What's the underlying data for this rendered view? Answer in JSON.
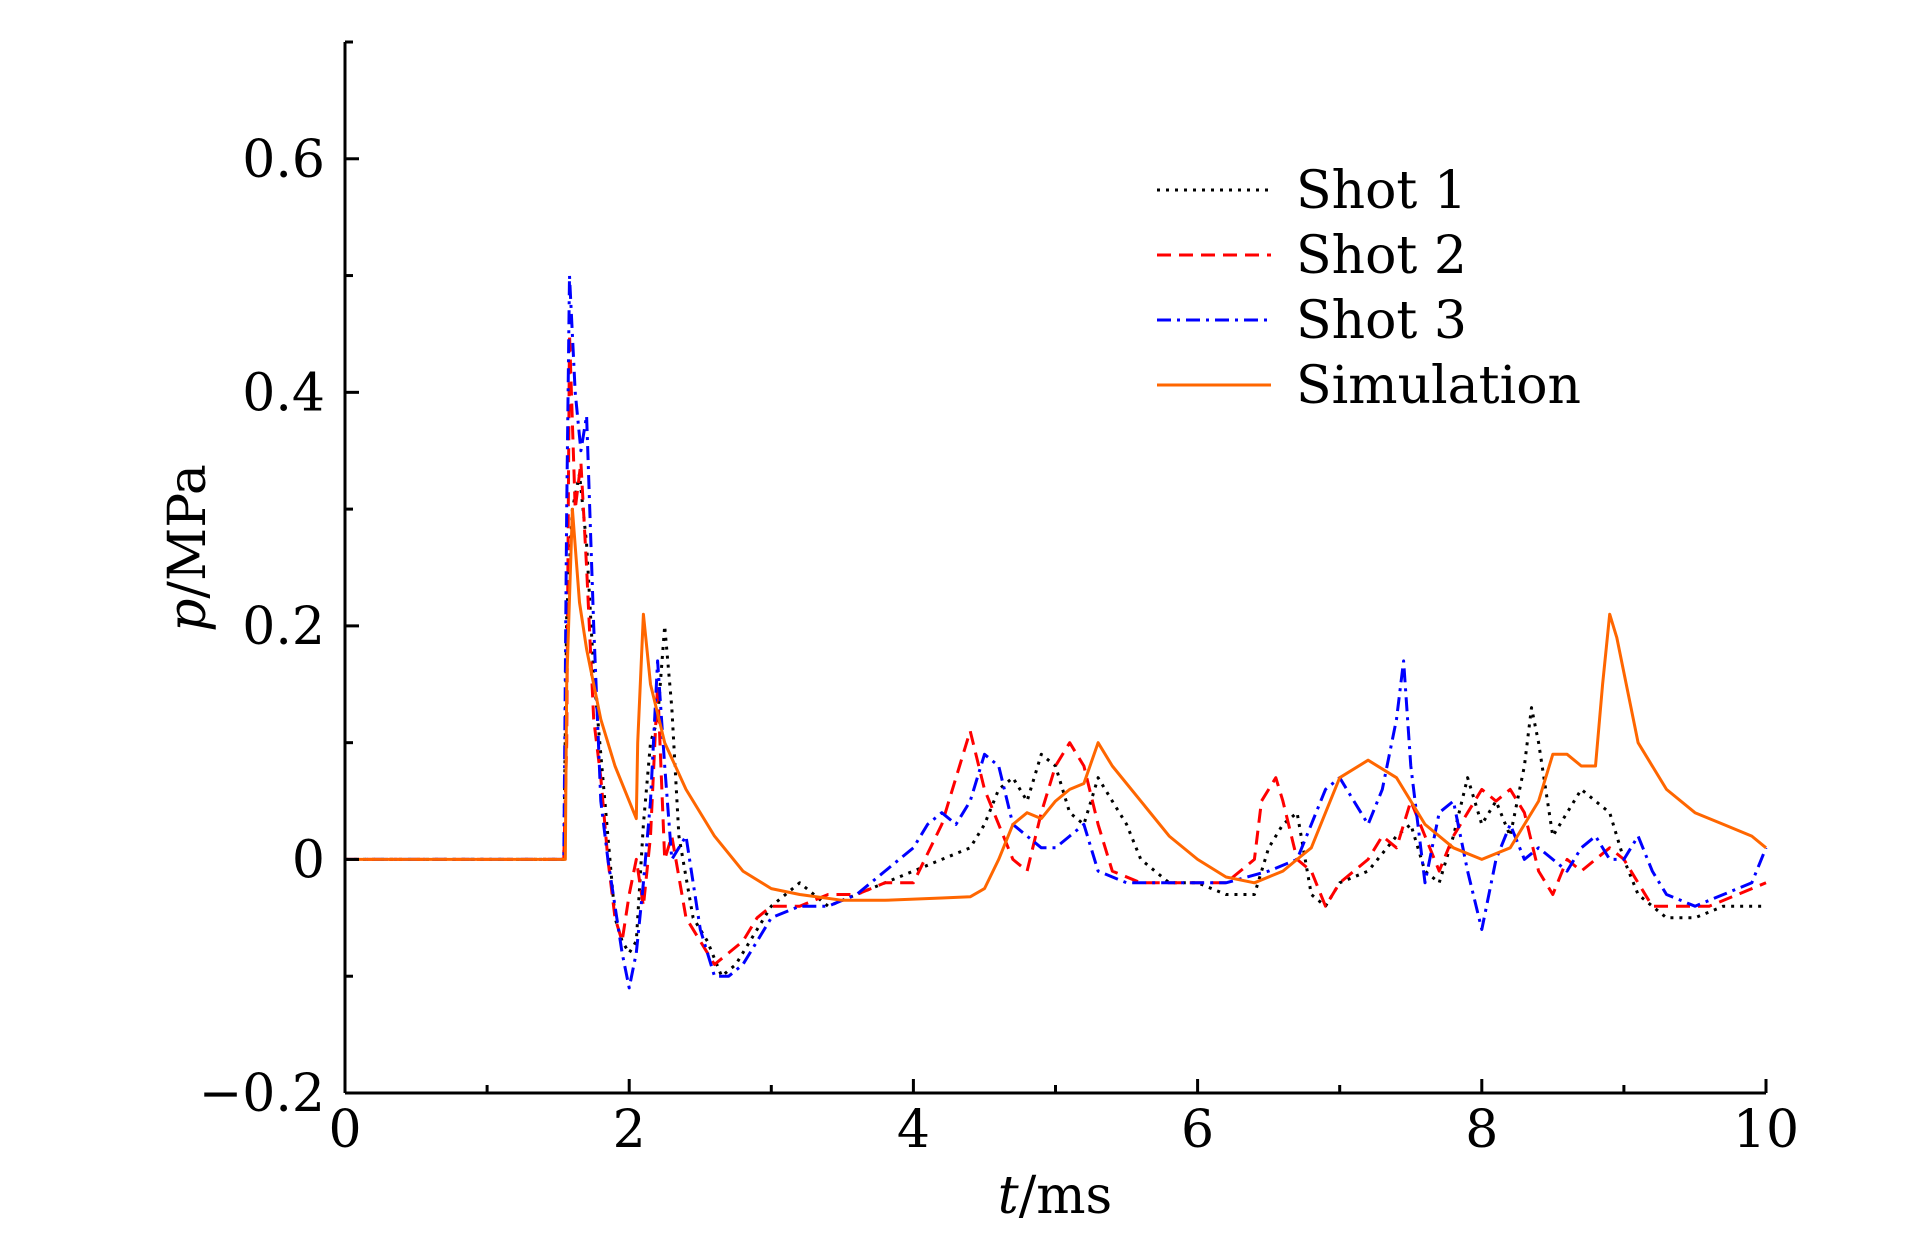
{
  "chart_data": {
    "type": "line",
    "xlabel_var": "t",
    "xlabel_unit": "/ms",
    "ylabel_var": "p",
    "ylabel_unit": "/MPa",
    "xlim": [
      0,
      10
    ],
    "ylim": [
      -0.2,
      0.7
    ],
    "x_ticks": [
      0,
      2,
      4,
      6,
      8,
      10
    ],
    "x_tick_labels": [
      "0",
      "2",
      "4",
      "6",
      "8",
      "10"
    ],
    "y_ticks": [
      -0.2,
      0,
      0.2,
      0.4,
      0.6
    ],
    "y_tick_labels": [
      "−0.2",
      "0",
      "0.2",
      "0.4",
      "0.6"
    ],
    "grid": false,
    "legend_position": "top-right",
    "series": [
      {
        "name": "Shot 1",
        "color": "#000000",
        "dash": "dotted",
        "points": [
          [
            0,
            0
          ],
          [
            1.54,
            0
          ],
          [
            1.56,
            0.21
          ],
          [
            1.6,
            0.3
          ],
          [
            1.65,
            0.33
          ],
          [
            1.7,
            0.27
          ],
          [
            1.75,
            0.16
          ],
          [
            1.8,
            0.09
          ],
          [
            1.85,
            0.02
          ],
          [
            1.9,
            -0.05
          ],
          [
            1.95,
            -0.07
          ],
          [
            2.0,
            -0.08
          ],
          [
            2.05,
            -0.07
          ],
          [
            2.1,
            0.03
          ],
          [
            2.15,
            0.1
          ],
          [
            2.2,
            0.12
          ],
          [
            2.25,
            0.2
          ],
          [
            2.3,
            0.13
          ],
          [
            2.35,
            0.02
          ],
          [
            2.45,
            -0.05
          ],
          [
            2.55,
            -0.07
          ],
          [
            2.65,
            -0.1
          ],
          [
            2.75,
            -0.09
          ],
          [
            2.9,
            -0.06
          ],
          [
            3.0,
            -0.04
          ],
          [
            3.2,
            -0.02
          ],
          [
            3.4,
            -0.04
          ],
          [
            3.6,
            -0.03
          ],
          [
            3.8,
            -0.02
          ],
          [
            4.0,
            -0.01
          ],
          [
            4.2,
            0.0
          ],
          [
            4.4,
            0.01
          ],
          [
            4.5,
            0.03
          ],
          [
            4.6,
            0.06
          ],
          [
            4.7,
            0.07
          ],
          [
            4.8,
            0.05
          ],
          [
            4.9,
            0.09
          ],
          [
            5.0,
            0.08
          ],
          [
            5.1,
            0.04
          ],
          [
            5.2,
            0.03
          ],
          [
            5.3,
            0.07
          ],
          [
            5.4,
            0.05
          ],
          [
            5.5,
            0.03
          ],
          [
            5.6,
            0.0
          ],
          [
            5.8,
            -0.02
          ],
          [
            6.0,
            -0.02
          ],
          [
            6.2,
            -0.03
          ],
          [
            6.4,
            -0.03
          ],
          [
            6.5,
            0.01
          ],
          [
            6.6,
            0.03
          ],
          [
            6.7,
            0.04
          ],
          [
            6.8,
            -0.03
          ],
          [
            6.9,
            -0.04
          ],
          [
            7.0,
            -0.02
          ],
          [
            7.2,
            -0.01
          ],
          [
            7.4,
            0.02
          ],
          [
            7.5,
            0.03
          ],
          [
            7.6,
            -0.01
          ],
          [
            7.7,
            -0.02
          ],
          [
            7.8,
            0.02
          ],
          [
            7.9,
            0.07
          ],
          [
            8.0,
            0.03
          ],
          [
            8.1,
            0.05
          ],
          [
            8.2,
            0.02
          ],
          [
            8.3,
            0.08
          ],
          [
            8.35,
            0.13
          ],
          [
            8.4,
            0.1
          ],
          [
            8.5,
            0.02
          ],
          [
            8.6,
            0.04
          ],
          [
            8.7,
            0.06
          ],
          [
            8.8,
            0.05
          ],
          [
            8.9,
            0.04
          ],
          [
            9.0,
            0.0
          ],
          [
            9.1,
            -0.03
          ],
          [
            9.2,
            -0.04
          ],
          [
            9.3,
            -0.05
          ],
          [
            9.5,
            -0.05
          ],
          [
            9.7,
            -0.04
          ],
          [
            10.0,
            -0.04
          ]
        ]
      },
      {
        "name": "Shot 2",
        "color": "#ff0000",
        "dash": "dashed",
        "points": [
          [
            0,
            0
          ],
          [
            1.54,
            0
          ],
          [
            1.56,
            0.1
          ],
          [
            1.58,
            0.45
          ],
          [
            1.62,
            0.3
          ],
          [
            1.66,
            0.34
          ],
          [
            1.7,
            0.25
          ],
          [
            1.75,
            0.12
          ],
          [
            1.8,
            0.07
          ],
          [
            1.85,
            0.0
          ],
          [
            1.9,
            -0.05
          ],
          [
            1.95,
            -0.07
          ],
          [
            2.0,
            -0.03
          ],
          [
            2.05,
            0.0
          ],
          [
            2.1,
            -0.04
          ],
          [
            2.15,
            0.02
          ],
          [
            2.2,
            0.15
          ],
          [
            2.25,
            0.0
          ],
          [
            2.3,
            0.02
          ],
          [
            2.4,
            -0.05
          ],
          [
            2.5,
            -0.07
          ],
          [
            2.6,
            -0.09
          ],
          [
            2.7,
            -0.08
          ],
          [
            2.8,
            -0.07
          ],
          [
            2.9,
            -0.05
          ],
          [
            3.0,
            -0.04
          ],
          [
            3.2,
            -0.04
          ],
          [
            3.4,
            -0.03
          ],
          [
            3.6,
            -0.03
          ],
          [
            3.8,
            -0.02
          ],
          [
            4.0,
            -0.02
          ],
          [
            4.2,
            0.03
          ],
          [
            4.3,
            0.07
          ],
          [
            4.4,
            0.11
          ],
          [
            4.5,
            0.06
          ],
          [
            4.6,
            0.03
          ],
          [
            4.7,
            0.0
          ],
          [
            4.8,
            -0.01
          ],
          [
            4.9,
            0.04
          ],
          [
            5.0,
            0.08
          ],
          [
            5.1,
            0.1
          ],
          [
            5.2,
            0.08
          ],
          [
            5.3,
            0.03
          ],
          [
            5.4,
            -0.01
          ],
          [
            5.6,
            -0.02
          ],
          [
            5.8,
            -0.02
          ],
          [
            6.0,
            -0.02
          ],
          [
            6.2,
            -0.02
          ],
          [
            6.4,
            0.0
          ],
          [
            6.45,
            0.05
          ],
          [
            6.55,
            0.07
          ],
          [
            6.6,
            0.05
          ],
          [
            6.7,
            0.0
          ],
          [
            6.8,
            -0.01
          ],
          [
            6.9,
            -0.04
          ],
          [
            7.0,
            -0.02
          ],
          [
            7.2,
            0.0
          ],
          [
            7.3,
            0.02
          ],
          [
            7.4,
            0.01
          ],
          [
            7.5,
            0.05
          ],
          [
            7.6,
            0.02
          ],
          [
            7.7,
            -0.01
          ],
          [
            7.8,
            0.02
          ],
          [
            7.9,
            0.04
          ],
          [
            8.0,
            0.06
          ],
          [
            8.1,
            0.05
          ],
          [
            8.2,
            0.06
          ],
          [
            8.3,
            0.04
          ],
          [
            8.4,
            -0.01
          ],
          [
            8.5,
            -0.03
          ],
          [
            8.6,
            0.0
          ],
          [
            8.7,
            -0.01
          ],
          [
            8.8,
            0.0
          ],
          [
            8.9,
            0.01
          ],
          [
            9.0,
            0.0
          ],
          [
            9.1,
            -0.02
          ],
          [
            9.2,
            -0.04
          ],
          [
            9.4,
            -0.04
          ],
          [
            9.6,
            -0.04
          ],
          [
            9.8,
            -0.03
          ],
          [
            10.0,
            -0.02
          ]
        ]
      },
      {
        "name": "Shot 3",
        "color": "#0000ff",
        "dash": "dashdot",
        "points": [
          [
            0,
            0
          ],
          [
            1.54,
            0
          ],
          [
            1.56,
            0.3
          ],
          [
            1.58,
            0.5
          ],
          [
            1.62,
            0.4
          ],
          [
            1.66,
            0.35
          ],
          [
            1.7,
            0.38
          ],
          [
            1.75,
            0.2
          ],
          [
            1.8,
            0.05
          ],
          [
            1.85,
            0.0
          ],
          [
            1.9,
            -0.04
          ],
          [
            1.95,
            -0.08
          ],
          [
            2.0,
            -0.11
          ],
          [
            2.05,
            -0.08
          ],
          [
            2.1,
            -0.02
          ],
          [
            2.15,
            0.05
          ],
          [
            2.2,
            0.17
          ],
          [
            2.25,
            0.08
          ],
          [
            2.3,
            0.0
          ],
          [
            2.4,
            0.02
          ],
          [
            2.5,
            -0.06
          ],
          [
            2.6,
            -0.1
          ],
          [
            2.7,
            -0.1
          ],
          [
            2.8,
            -0.09
          ],
          [
            2.9,
            -0.07
          ],
          [
            3.0,
            -0.05
          ],
          [
            3.2,
            -0.04
          ],
          [
            3.4,
            -0.04
          ],
          [
            3.6,
            -0.03
          ],
          [
            3.8,
            -0.01
          ],
          [
            4.0,
            0.01
          ],
          [
            4.1,
            0.03
          ],
          [
            4.2,
            0.04
          ],
          [
            4.3,
            0.03
          ],
          [
            4.4,
            0.05
          ],
          [
            4.5,
            0.09
          ],
          [
            4.6,
            0.08
          ],
          [
            4.7,
            0.03
          ],
          [
            4.8,
            0.02
          ],
          [
            4.9,
            0.01
          ],
          [
            5.0,
            0.01
          ],
          [
            5.1,
            0.02
          ],
          [
            5.2,
            0.03
          ],
          [
            5.3,
            -0.01
          ],
          [
            5.5,
            -0.02
          ],
          [
            5.7,
            -0.02
          ],
          [
            6.0,
            -0.02
          ],
          [
            6.2,
            -0.02
          ],
          [
            6.5,
            -0.01
          ],
          [
            6.7,
            0.0
          ],
          [
            6.8,
            0.03
          ],
          [
            6.9,
            0.06
          ],
          [
            7.0,
            0.07
          ],
          [
            7.1,
            0.05
          ],
          [
            7.2,
            0.03
          ],
          [
            7.3,
            0.06
          ],
          [
            7.4,
            0.12
          ],
          [
            7.45,
            0.17
          ],
          [
            7.5,
            0.08
          ],
          [
            7.6,
            -0.02
          ],
          [
            7.7,
            0.04
          ],
          [
            7.8,
            0.05
          ],
          [
            7.9,
            -0.01
          ],
          [
            8.0,
            -0.06
          ],
          [
            8.1,
            0.0
          ],
          [
            8.2,
            0.03
          ],
          [
            8.3,
            0.0
          ],
          [
            8.4,
            0.01
          ],
          [
            8.5,
            0.0
          ],
          [
            8.6,
            -0.01
          ],
          [
            8.7,
            0.01
          ],
          [
            8.8,
            0.02
          ],
          [
            8.9,
            0.0
          ],
          [
            9.0,
            0.0
          ],
          [
            9.1,
            0.02
          ],
          [
            9.2,
            -0.01
          ],
          [
            9.3,
            -0.03
          ],
          [
            9.5,
            -0.04
          ],
          [
            9.7,
            -0.03
          ],
          [
            9.9,
            -0.02
          ],
          [
            10.0,
            0.01
          ]
        ]
      },
      {
        "name": "Simulation",
        "color": "#ff6600",
        "dash": "solid",
        "points": [
          [
            0,
            0
          ],
          [
            1.55,
            0
          ],
          [
            1.56,
            0.15
          ],
          [
            1.6,
            0.3
          ],
          [
            1.65,
            0.22
          ],
          [
            1.7,
            0.18
          ],
          [
            1.8,
            0.12
          ],
          [
            1.9,
            0.08
          ],
          [
            2.0,
            0.05
          ],
          [
            2.05,
            0.035
          ],
          [
            2.06,
            0.1
          ],
          [
            2.1,
            0.21
          ],
          [
            2.15,
            0.15
          ],
          [
            2.25,
            0.1
          ],
          [
            2.4,
            0.06
          ],
          [
            2.6,
            0.02
          ],
          [
            2.8,
            -0.01
          ],
          [
            3.0,
            -0.025
          ],
          [
            3.2,
            -0.03
          ],
          [
            3.5,
            -0.035
          ],
          [
            3.8,
            -0.035
          ],
          [
            4.2,
            -0.033
          ],
          [
            4.4,
            -0.032
          ],
          [
            4.5,
            -0.025
          ],
          [
            4.6,
            0.0
          ],
          [
            4.7,
            0.03
          ],
          [
            4.8,
            0.04
          ],
          [
            4.9,
            0.035
          ],
          [
            5.0,
            0.05
          ],
          [
            5.1,
            0.06
          ],
          [
            5.2,
            0.065
          ],
          [
            5.3,
            0.1
          ],
          [
            5.4,
            0.08
          ],
          [
            5.6,
            0.05
          ],
          [
            5.8,
            0.02
          ],
          [
            6.0,
            0.0
          ],
          [
            6.2,
            -0.015
          ],
          [
            6.4,
            -0.02
          ],
          [
            6.6,
            -0.01
          ],
          [
            6.7,
            0.0
          ],
          [
            6.8,
            0.01
          ],
          [
            6.9,
            0.04
          ],
          [
            7.0,
            0.07
          ],
          [
            7.2,
            0.085
          ],
          [
            7.4,
            0.07
          ],
          [
            7.6,
            0.03
          ],
          [
            7.8,
            0.01
          ],
          [
            8.0,
            0.0
          ],
          [
            8.2,
            0.01
          ],
          [
            8.4,
            0.05
          ],
          [
            8.5,
            0.09
          ],
          [
            8.6,
            0.09
          ],
          [
            8.7,
            0.08
          ],
          [
            8.8,
            0.08
          ],
          [
            8.85,
            0.15
          ],
          [
            8.9,
            0.21
          ],
          [
            8.95,
            0.19
          ],
          [
            9.1,
            0.1
          ],
          [
            9.3,
            0.06
          ],
          [
            9.5,
            0.04
          ],
          [
            9.7,
            0.03
          ],
          [
            9.9,
            0.02
          ],
          [
            10.0,
            0.01
          ]
        ]
      }
    ]
  }
}
